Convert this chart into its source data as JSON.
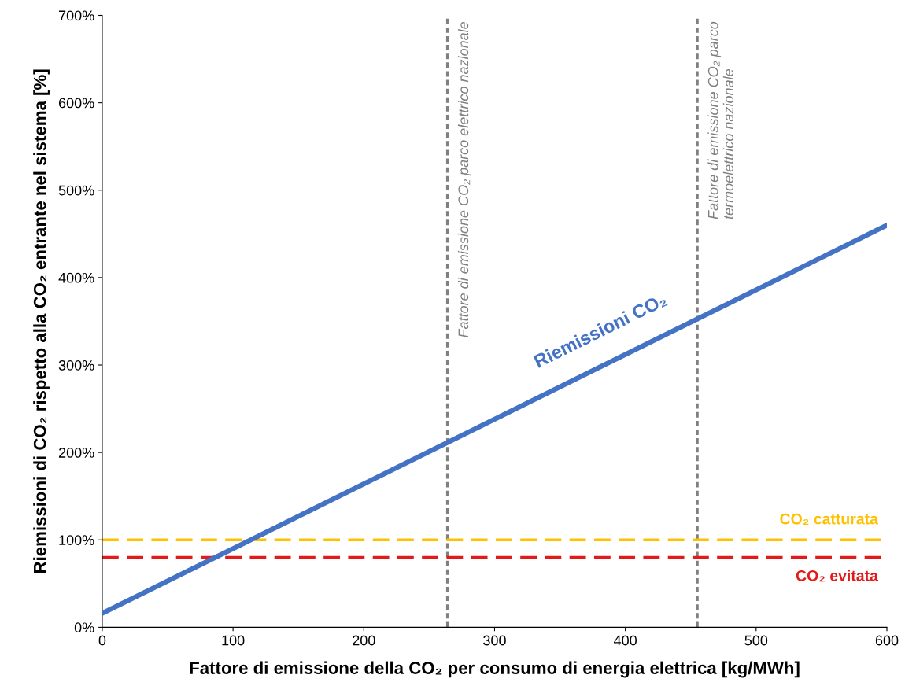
{
  "chart_data": {
    "type": "line",
    "xlabel": "Fattore di emissione della CO₂ per consumo di energia elettrica [kg/MWh]",
    "ylabel": "Riemissioni di CO₂ rispetto alla CO₂ entrante nel sistema [%]",
    "series": [
      {
        "name": "Riemissioni CO₂",
        "color": "#4472c4",
        "x": [
          0,
          600
        ],
        "values": [
          16,
          460
        ]
      }
    ],
    "xlim": [
      0,
      600
    ],
    "xticks": [
      0,
      100,
      200,
      300,
      400,
      500,
      600
    ],
    "ylim": [
      0,
      700
    ],
    "yticks": [
      {
        "value": 0,
        "label": "0%"
      },
      {
        "value": 100,
        "label": "100%"
      },
      {
        "value": 200,
        "label": "200%"
      },
      {
        "value": 300,
        "label": "300%"
      },
      {
        "value": 400,
        "label": "400%"
      },
      {
        "value": 500,
        "label": "500%"
      },
      {
        "value": 600,
        "label": "600%"
      },
      {
        "value": 700,
        "label": "700%"
      }
    ],
    "ref_lines": [
      {
        "axis": "x",
        "value": 264,
        "label": "Fattore di emissione CO₂ parco elettrico nazionale",
        "color": "#808080",
        "line_style": "dotted"
      },
      {
        "axis": "x",
        "value": 455,
        "label": "Fattore di emissione CO₂ parco\ntermoelettrico nazionale",
        "color": "#808080",
        "line_style": "dotted"
      },
      {
        "axis": "y",
        "value": 100,
        "label": "CO₂ catturata",
        "color": "#ffc000",
        "line_style": "dashed"
      },
      {
        "axis": "y",
        "value": 80,
        "label": "CO₂ evitata",
        "color": "#e31a1a",
        "line_style": "dashed"
      }
    ],
    "grid": false,
    "legend": false,
    "line_style": "solid",
    "marker": "none"
  }
}
